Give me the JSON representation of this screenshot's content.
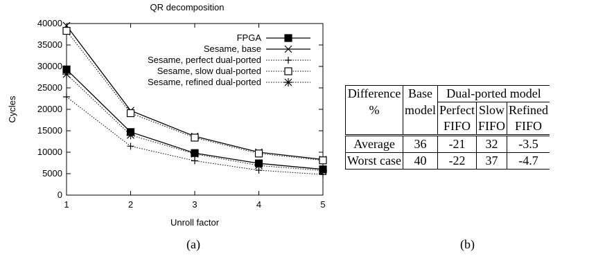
{
  "chart_data": {
    "type": "line",
    "title": "QR decomposition",
    "xlabel": "Unroll factor",
    "ylabel": "Cycles",
    "xlim": [
      1,
      5
    ],
    "ylim": [
      0,
      40000
    ],
    "x_ticks": [
      1,
      2,
      3,
      4,
      5
    ],
    "y_ticks": [
      0,
      5000,
      10000,
      15000,
      20000,
      25000,
      30000,
      35000,
      40000
    ],
    "legend_position": "top-right",
    "grid": false,
    "x": [
      1,
      2,
      3,
      4,
      5
    ],
    "series": [
      {
        "name": "FPGA",
        "marker": "filled-square",
        "line": "solid",
        "values": [
          29300,
          14700,
          9800,
          7400,
          6000
        ]
      },
      {
        "name": "Sesame, base",
        "marker": "x",
        "line": "solid",
        "values": [
          39500,
          19700,
          13700,
          10000,
          8300
        ]
      },
      {
        "name": "Sesame, perfect dual-ported",
        "marker": "plus",
        "line": "dotted",
        "values": [
          22900,
          11400,
          8000,
          5800,
          4800
        ]
      },
      {
        "name": "Sesame, slow dual-ported",
        "marker": "open-square",
        "line": "dotted",
        "values": [
          38300,
          19100,
          13400,
          9700,
          8100
        ]
      },
      {
        "name": "Sesame, refined dual-ported",
        "marker": "asterisk",
        "line": "dotted",
        "values": [
          28200,
          14000,
          9600,
          6900,
          5700
        ]
      }
    ]
  },
  "captions": {
    "a": "(a)",
    "b": "(b)"
  },
  "table": {
    "h_difference": "Difference",
    "h_percent": "%",
    "h_base": "Base",
    "h_model": "model",
    "h_dual": "Dual-ported model",
    "h_perfect": "Perfect",
    "h_slow": "Slow",
    "h_refined": "Refined",
    "h_fifo": "FIFO",
    "rows": [
      {
        "label": "Average",
        "base": "36",
        "perfect": "-21",
        "slow": "32",
        "refined": "-3.5"
      },
      {
        "label": "Worst case",
        "base": "40",
        "perfect": "-22",
        "slow": "37",
        "refined": "-4.7"
      }
    ]
  }
}
